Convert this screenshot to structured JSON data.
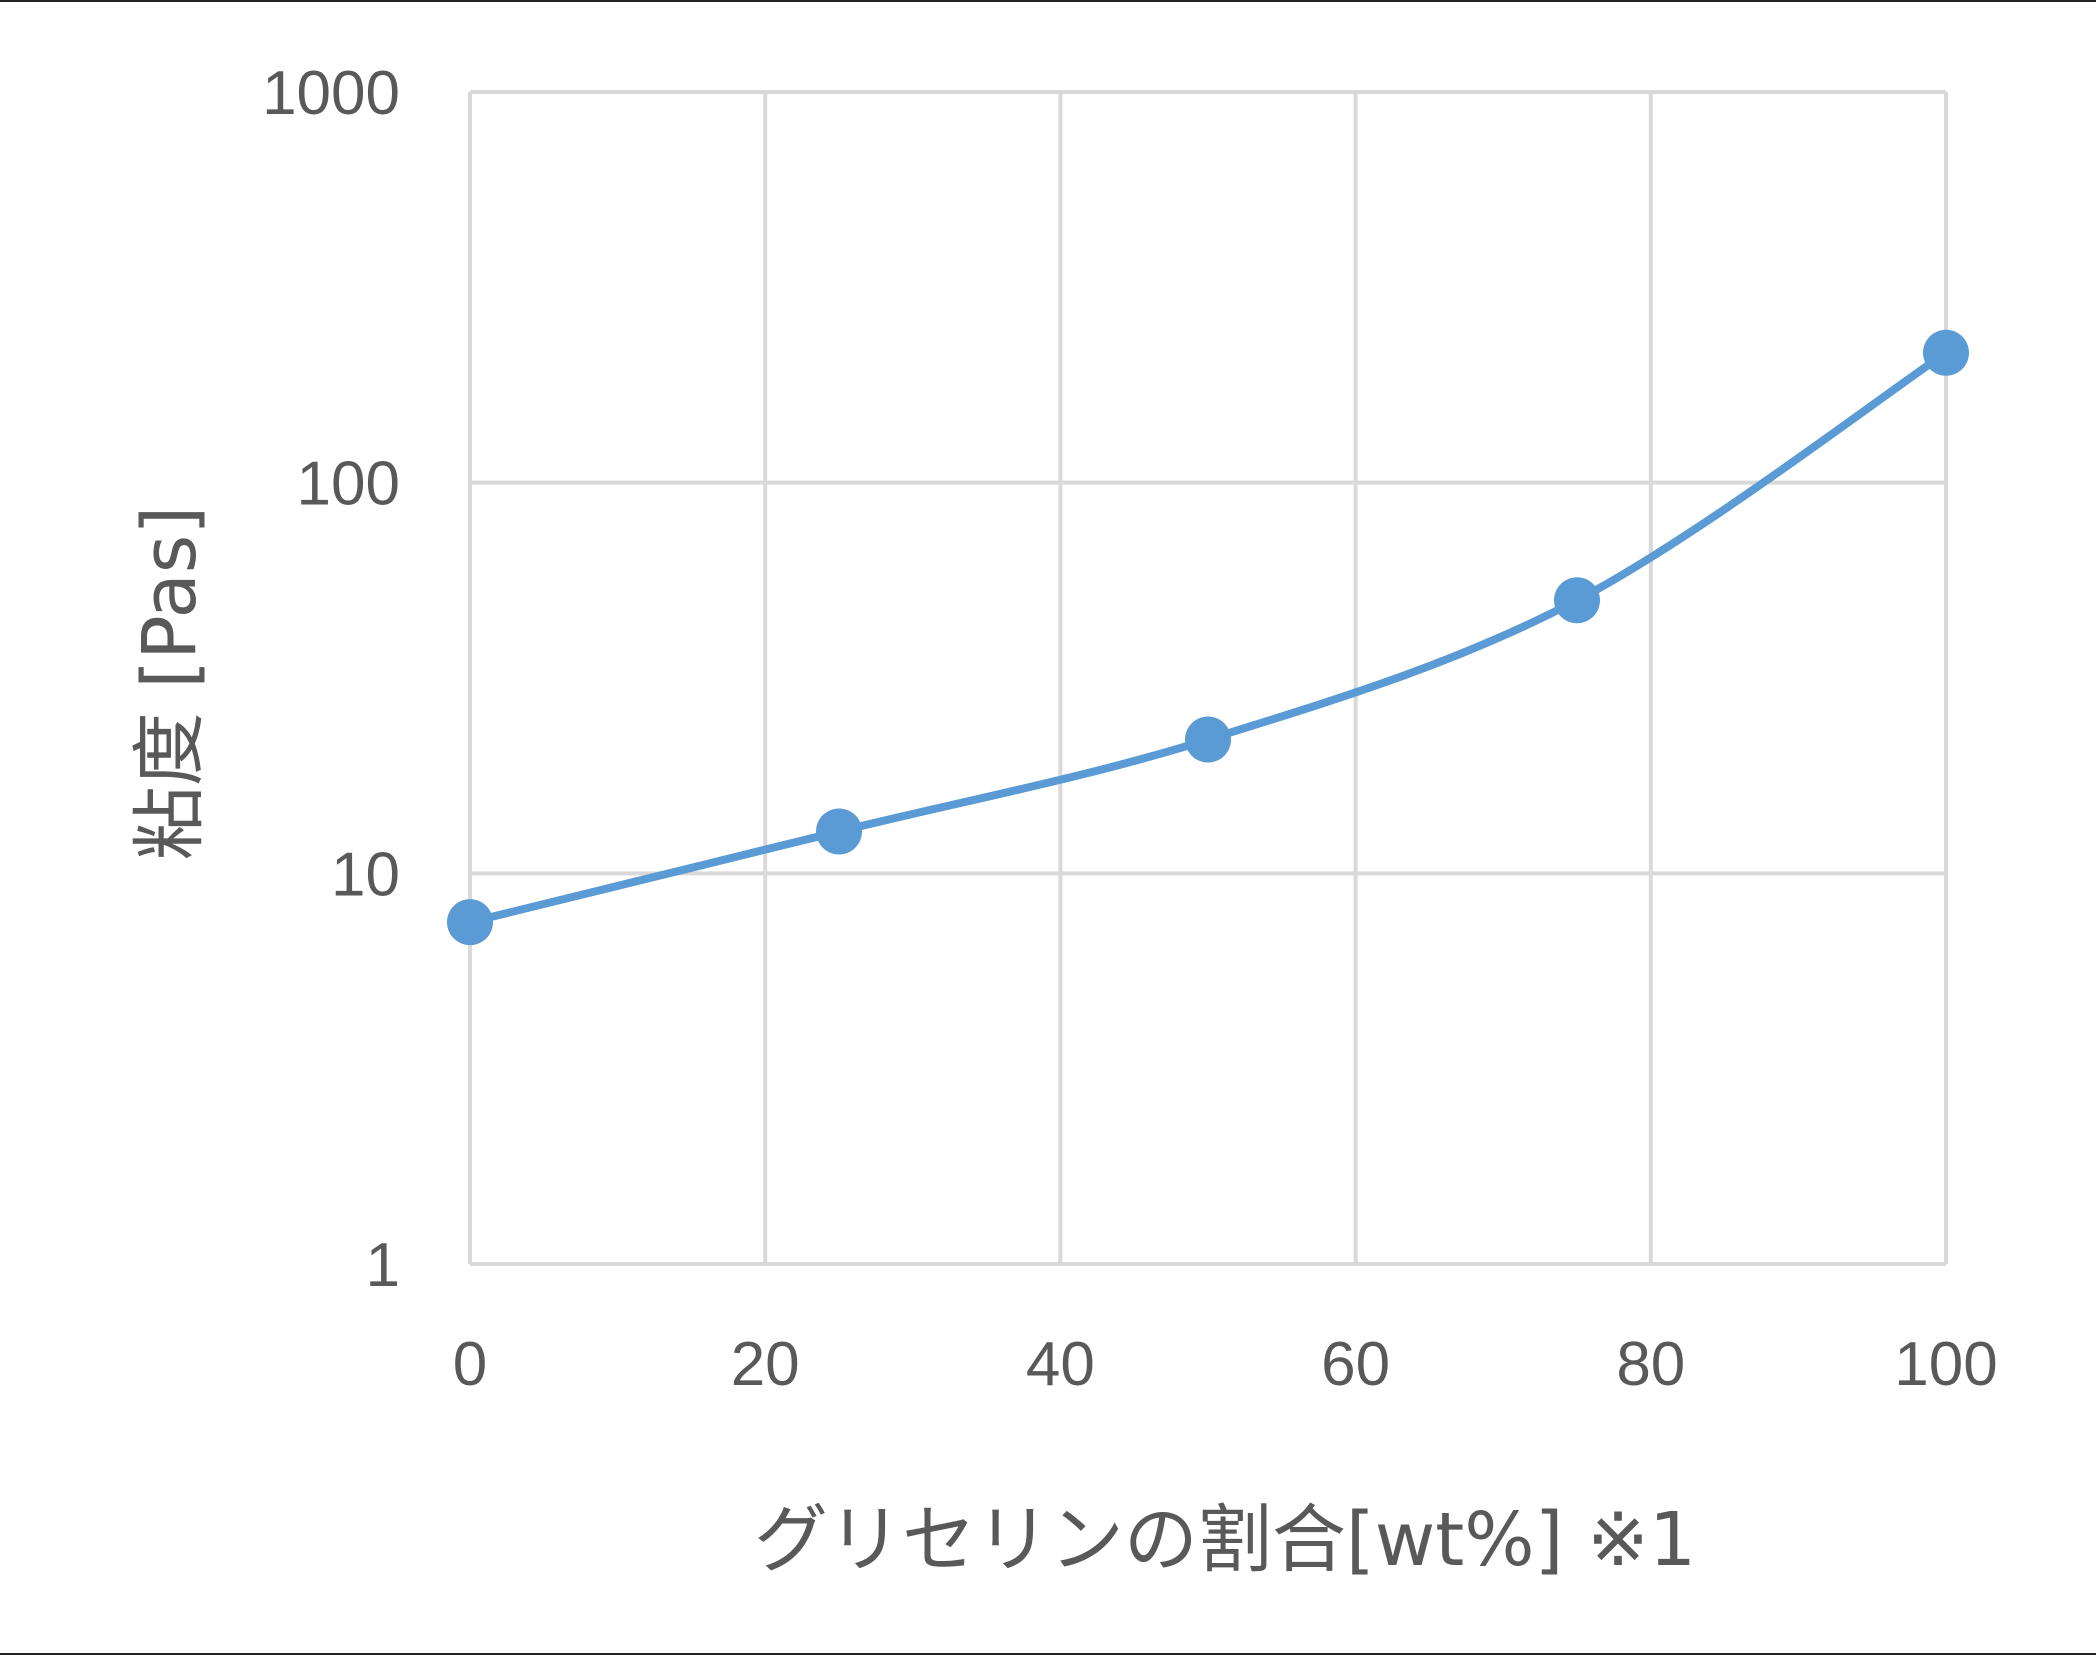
{
  "chart_data": {
    "type": "line",
    "xlabel": "グリセリンの割合[wt%] ※1",
    "ylabel": "粘度 [Pas]",
    "x_ticks": [
      "0",
      "20",
      "40",
      "60",
      "80",
      "100"
    ],
    "y_ticks": [
      "1",
      "10",
      "100",
      "1000"
    ],
    "xlim": [
      0,
      100
    ],
    "ylim": [
      1,
      1000
    ],
    "y_scale": "log",
    "grid": true,
    "legend": "none",
    "series": [
      {
        "x": [
          0,
          25,
          50,
          75,
          100
        ],
        "y": [
          7.5,
          12.8,
          22,
          50,
          215
        ],
        "color": "#5b9bd5",
        "smooth": true,
        "markers": true
      }
    ]
  }
}
